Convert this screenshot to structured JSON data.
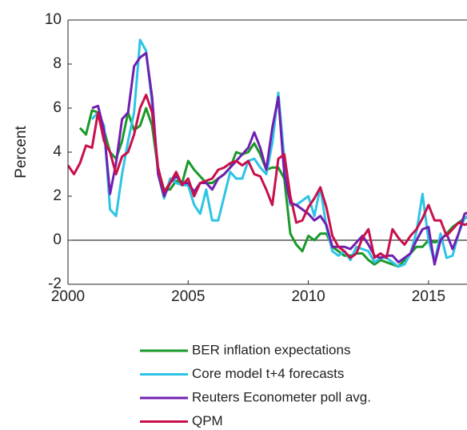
{
  "chart_data": {
    "type": "line",
    "y_label": "Percent",
    "x": [
      2000,
      2000.25,
      2000.5,
      2000.75,
      2001,
      2001.25,
      2001.5,
      2001.75,
      2002,
      2002.25,
      2002.5,
      2002.75,
      2003,
      2003.25,
      2003.5,
      2003.75,
      2004,
      2004.25,
      2004.5,
      2004.75,
      2005,
      2005.25,
      2005.5,
      2005.75,
      2006,
      2006.25,
      2006.5,
      2006.75,
      2007,
      2007.25,
      2007.5,
      2007.75,
      2008,
      2008.25,
      2008.5,
      2008.75,
      2009,
      2009.25,
      2009.5,
      2009.75,
      2010,
      2010.25,
      2010.5,
      2010.75,
      2011,
      2011.25,
      2011.5,
      2011.75,
      2012,
      2012.25,
      2012.5,
      2012.75,
      2013,
      2013.25,
      2013.5,
      2013.75,
      2014,
      2014.25,
      2014.5,
      2014.75,
      2015,
      2015.25,
      2015.5,
      2015.75,
      2016,
      2016.25,
      2016.5,
      2016.75
    ],
    "series": [
      {
        "name": "BER inflation expectations",
        "color": "#1a9a2a",
        "values": [
          null,
          null,
          5.1,
          4.8,
          5.9,
          5.8,
          5.0,
          4.0,
          3.7,
          4.5,
          5.8,
          5.0,
          5.2,
          6.0,
          5.2,
          3.2,
          2.3,
          2.3,
          2.7,
          2.6,
          3.6,
          3.2,
          2.9,
          2.6,
          2.6,
          2.8,
          3.0,
          3.3,
          4.0,
          3.9,
          4.0,
          4.4,
          3.9,
          3.2,
          3.3,
          3.3,
          2.8,
          0.3,
          -0.2,
          -0.5,
          0.2,
          0.0,
          0.3,
          0.3,
          -0.3,
          -0.5,
          -0.7,
          -0.7,
          -0.6,
          -0.6,
          -0.9,
          -1.1,
          -0.9,
          -1.0,
          -1.1,
          -1.2,
          -0.9,
          -0.6,
          -0.3,
          -0.3,
          0.0,
          -0.1,
          0.0,
          0.3,
          0.6,
          0.8,
          1.0,
          1.1
        ]
      },
      {
        "name": "Core model t+4 forecasts",
        "color": "#2ec4e6",
        "values": [
          null,
          null,
          null,
          null,
          5.5,
          5.8,
          5.2,
          1.4,
          1.1,
          3.0,
          4.5,
          5.8,
          9.1,
          8.6,
          6.2,
          3.0,
          1.9,
          2.8,
          2.6,
          2.5,
          2.5,
          1.6,
          1.2,
          2.3,
          0.9,
          0.9,
          2.0,
          3.1,
          2.8,
          2.8,
          3.6,
          3.7,
          3.3,
          3.0,
          4.4,
          6.7,
          3.7,
          1.6,
          1.6,
          1.8,
          2.0,
          1.1,
          2.4,
          0.6,
          -0.5,
          -0.7,
          -0.5,
          -0.9,
          -0.3,
          -0.4,
          -0.5,
          -1.0,
          -0.8,
          -0.8,
          -1.0,
          -1.2,
          -1.1,
          -0.6,
          0.4,
          2.1,
          0.0,
          -1.0,
          0.3,
          -0.8,
          -0.7,
          0.3,
          1.0,
          1.2
        ]
      },
      {
        "name": "Reuters Econometer poll avg.",
        "color": "#7020b0",
        "values": [
          null,
          null,
          null,
          null,
          6.0,
          6.1,
          5.0,
          2.1,
          3.5,
          5.5,
          5.8,
          7.9,
          8.3,
          8.5,
          6.5,
          3.0,
          2.0,
          2.6,
          2.9,
          2.6,
          2.6,
          2.2,
          2.6,
          2.6,
          2.3,
          2.8,
          3.0,
          3.3,
          3.6,
          3.9,
          4.2,
          4.9,
          4.2,
          3.2,
          5.1,
          6.5,
          3.0,
          1.7,
          1.6,
          1.4,
          1.2,
          0.9,
          1.1,
          0.7,
          -0.3,
          -0.3,
          -0.3,
          -0.4,
          -0.1,
          0.2,
          -0.2,
          -0.7,
          -0.8,
          -0.7,
          -0.7,
          -1.0,
          -0.8,
          -0.6,
          0.0,
          0.5,
          0.6,
          -1.1,
          0.0,
          0.3,
          -0.4,
          0.3,
          1.2,
          1.3
        ]
      },
      {
        "name": "QPM",
        "color": "#c8104a",
        "values": [
          3.4,
          3.0,
          3.5,
          4.3,
          4.2,
          5.8,
          4.5,
          4.0,
          3.0,
          3.8,
          4.0,
          4.8,
          6.0,
          6.6,
          5.8,
          3.3,
          2.2,
          2.6,
          3.1,
          2.5,
          2.8,
          2.0,
          2.6,
          2.7,
          2.8,
          3.2,
          3.3,
          3.5,
          3.6,
          3.4,
          3.6,
          3.0,
          2.9,
          2.3,
          1.6,
          3.7,
          3.9,
          2.0,
          0.8,
          0.9,
          1.5,
          1.9,
          2.4,
          1.5,
          0.2,
          -0.3,
          -0.5,
          -0.8,
          -0.6,
          0.1,
          0.5,
          -0.8,
          -0.6,
          -0.8,
          0.5,
          0.1,
          -0.2,
          0.2,
          0.5,
          1.0,
          1.6,
          0.9,
          0.9,
          0.2,
          0.5,
          0.8,
          0.7,
          0.8
        ]
      }
    ],
    "xlim": [
      2000,
      2016.6
    ],
    "xticks": [
      2000,
      2005,
      2010,
      2015
    ],
    "ylim": [
      -2,
      10
    ],
    "yticks": [
      -2,
      0,
      2,
      4,
      6,
      8,
      10
    ],
    "hline": 0
  }
}
